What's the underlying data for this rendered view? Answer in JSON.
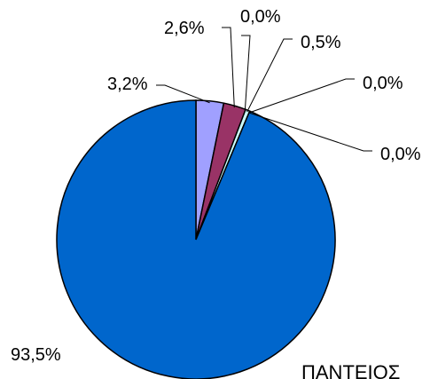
{
  "chart_data": {
    "type": "pie",
    "slices": [
      {
        "value": 3.2,
        "label": "3,2%",
        "color": "#a0a0ff"
      },
      {
        "value": 2.6,
        "label": "2,6%",
        "color": "#993366"
      },
      {
        "value": 0.0,
        "label": "0,0%",
        "color": "#ffffcc"
      },
      {
        "value": 0.5,
        "label": "0,5%",
        "color": "#ccffff"
      },
      {
        "value": 0.0,
        "label": "0,0%",
        "color": "#660066"
      },
      {
        "value": 0.0,
        "label": "0,0%",
        "color": "#ff8080"
      },
      {
        "value": 93.5,
        "label": "93,5%",
        "color": "#0066cc"
      }
    ],
    "start_angle_deg": 0,
    "direction": "clockwise"
  },
  "footer_text": "ΠΑΝΤΕΙΟΣ"
}
